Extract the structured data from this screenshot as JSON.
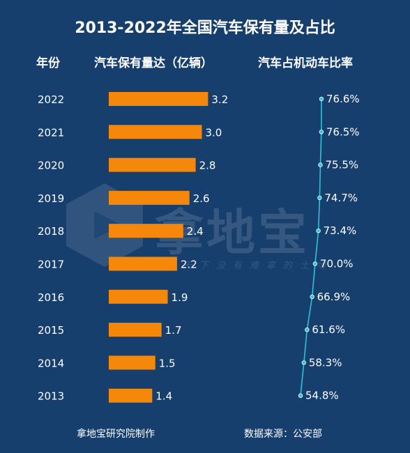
{
  "title": "2013-2022年全国汽车保有量及占比",
  "headers": {
    "year": "年份",
    "car": "汽车保有量达（亿辆）",
    "ratio": "汽车占机动车比率"
  },
  "footer": {
    "left": "拿地宝研究院制作",
    "right": "数据来源：公安部"
  },
  "watermark": {
    "text": "拿地宝",
    "slogan": "天下没有难拿的土地"
  },
  "colors": {
    "background": "#173f6e",
    "bar": "#f5870a",
    "line": "#2ec4d6"
  },
  "chart_data": {
    "type": "bar",
    "categories": [
      "2022",
      "2021",
      "2020",
      "2019",
      "2018",
      "2017",
      "2016",
      "2015",
      "2014",
      "2013"
    ],
    "series": [
      {
        "name": "汽车保有量达（亿辆）",
        "values": [
          3.2,
          3.0,
          2.8,
          2.6,
          2.4,
          2.2,
          1.9,
          1.7,
          1.5,
          1.4
        ],
        "labels": [
          "3.2",
          "3.0",
          "2.8",
          "2.6",
          "2.4",
          "2.2",
          "1.9",
          "1.7",
          "1.5",
          "1.4"
        ]
      },
      {
        "name": "汽车占机动车比率",
        "type": "line",
        "values": [
          76.6,
          76.5,
          75.5,
          74.7,
          73.4,
          70.0,
          66.9,
          61.6,
          58.3,
          54.8
        ],
        "labels": [
          "76.6%",
          "76.5%",
          "75.5%",
          "74.7%",
          "73.4%",
          "70.0%",
          "66.9%",
          "61.6%",
          "58.3%",
          "54.8%"
        ]
      }
    ]
  }
}
